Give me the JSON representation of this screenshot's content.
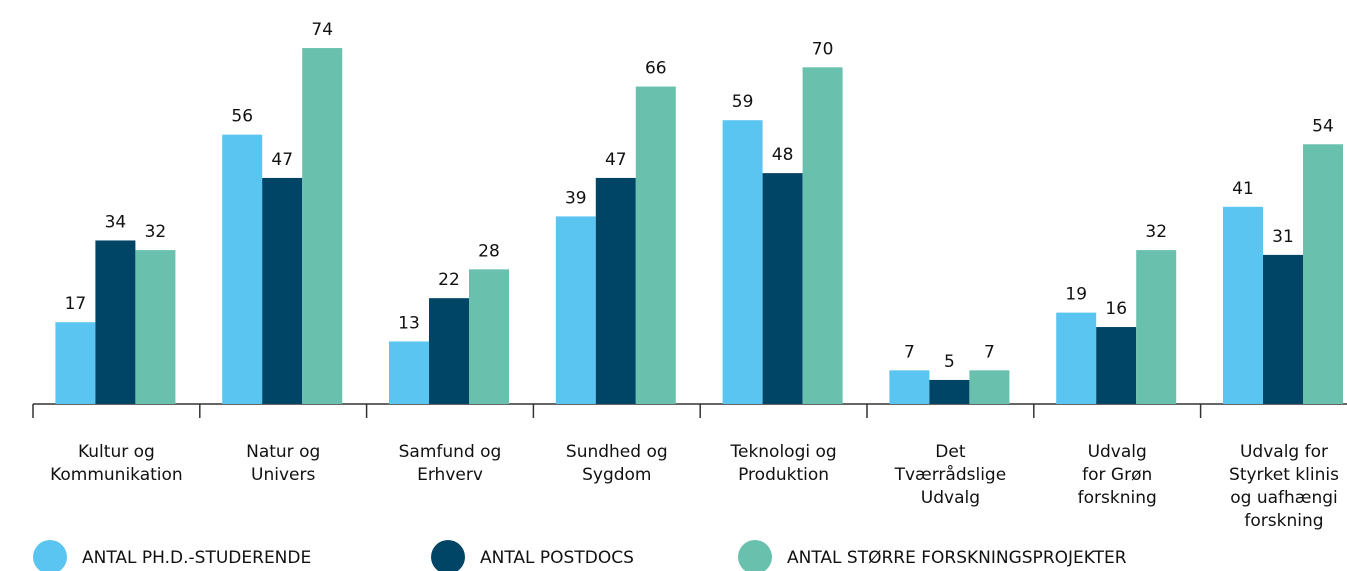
{
  "chart_data": {
    "type": "bar",
    "categories": [
      "Kultur og\nKommunikation",
      "Natur og\nUnivers",
      "Samfund og\nErhverv",
      "Sundhed og\nSygdom",
      "Teknologi og\nProduktion",
      "Det\nTværrådslige\nUdvalg",
      "Udvalg\nfor Grøn\nforskning",
      "Udvalg for\nStyrket klinis\nog uafhængi\nforskning"
    ],
    "series": [
      {
        "name": "ANTAL PH.D.-STUDERENDE",
        "color": "#5bc5f2",
        "values": [
          17,
          56,
          13,
          39,
          59,
          7,
          19,
          41
        ]
      },
      {
        "name": "ANTAL POSTDOCS",
        "color": "#004466",
        "values": [
          34,
          47,
          22,
          47,
          48,
          5,
          16,
          31
        ]
      },
      {
        "name": "ANTAL STØRRE FORSKNINGSPROJEKTER",
        "color": "#69c1ad",
        "values": [
          32,
          74,
          28,
          66,
          70,
          7,
          32,
          54
        ]
      }
    ]
  }
}
